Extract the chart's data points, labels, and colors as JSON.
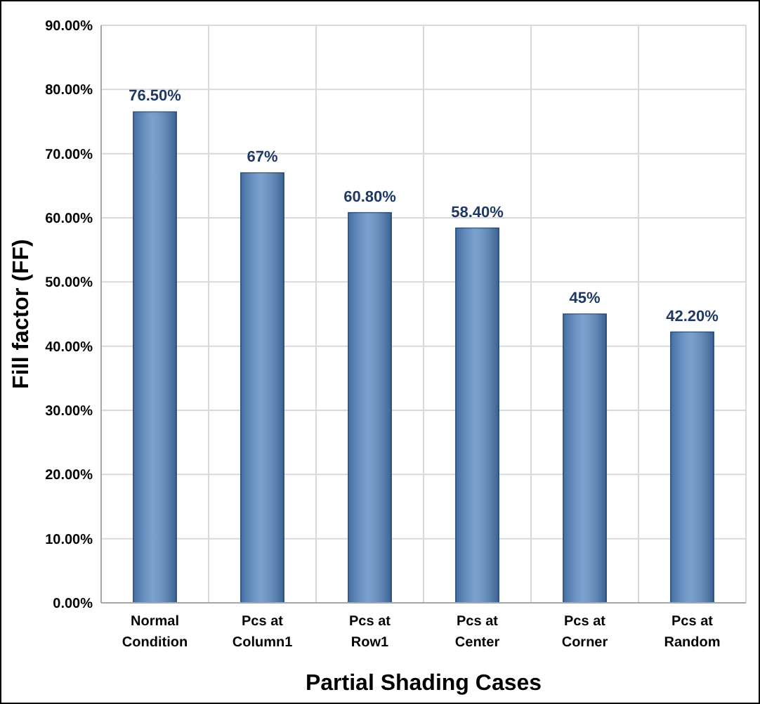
{
  "chart_data": {
    "type": "bar",
    "xlabel": "Partial Shading Cases",
    "ylabel": "Fill factor (FF)",
    "categories": [
      "Normal Condition",
      "Pcs at Column1",
      "Pcs at Row1",
      "Pcs at Center",
      "Pcs at Corner",
      "Pcs at Random"
    ],
    "values": [
      76.5,
      67,
      60.8,
      58.4,
      45,
      42.2
    ],
    "value_labels": [
      "76.50%",
      "67%",
      "60.80%",
      "58.40%",
      "45%",
      "42.20%"
    ],
    "color": "#4f81bd",
    "ylim": [
      0,
      90
    ],
    "yticks": [
      {
        "value": 0,
        "label": "0.00%"
      },
      {
        "value": 10,
        "label": "10.00%"
      },
      {
        "value": 20,
        "label": "20.00%"
      },
      {
        "value": 30,
        "label": "30.00%"
      },
      {
        "value": 40,
        "label": "40.00%"
      },
      {
        "value": 50,
        "label": "50.00%"
      },
      {
        "value": 60,
        "label": "60.00%"
      },
      {
        "value": 70,
        "label": "70.00%"
      },
      {
        "value": 80,
        "label": "80.00%"
      },
      {
        "value": 90,
        "label": "90.00%"
      }
    ],
    "grid": true
  }
}
